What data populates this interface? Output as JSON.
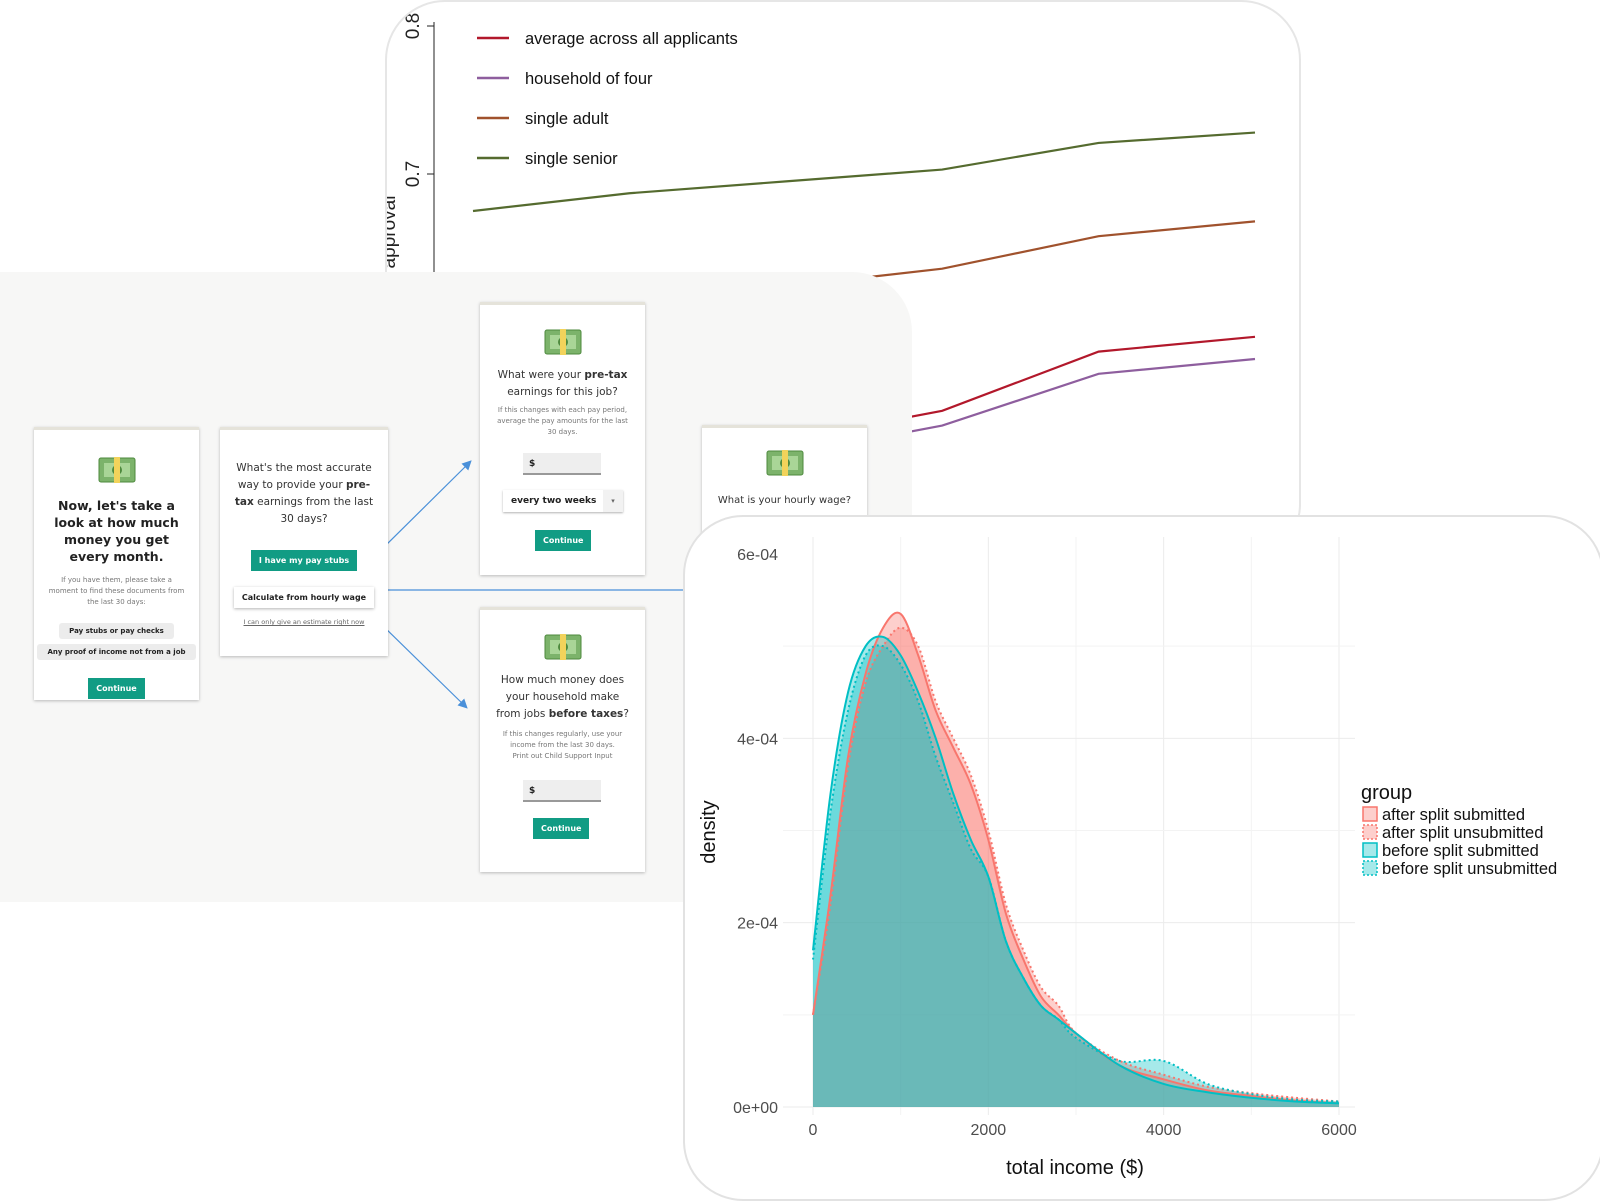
{
  "chart_data": [
    {
      "type": "line",
      "title": "",
      "xlabel": "",
      "ylabel": "approval",
      "ylim": [
        0.6,
        0.8
      ],
      "y_ticks": [
        "0.7"
      ],
      "y_top_tick_partial": "0.8",
      "x": [
        1,
        2,
        3,
        4,
        5,
        6
      ],
      "legend_position": "top-left",
      "series": [
        {
          "name": "average across all applicants",
          "color": "#b2182b",
          "values": [
            0.46,
            0.49,
            0.52,
            0.54,
            0.58,
            0.59
          ]
        },
        {
          "name": "household of four",
          "color": "#8e5e9e",
          "values": [
            0.45,
            0.48,
            0.51,
            0.53,
            0.565,
            0.575
          ]
        },
        {
          "name": "single adult",
          "color": "#a0522d",
          "values": [
            0.598,
            0.611,
            0.624,
            0.636,
            0.658,
            0.668
          ]
        },
        {
          "name": "single senior",
          "color": "#556b2f",
          "values": [
            0.675,
            0.687,
            0.695,
            0.703,
            0.721,
            0.728
          ]
        }
      ]
    },
    {
      "type": "area",
      "title": "",
      "xlabel": "total income ($)",
      "ylabel": "density",
      "xlim": [
        0,
        6000
      ],
      "ylim": [
        0,
        0.0006
      ],
      "x_ticks": [
        "0",
        "2000",
        "4000",
        "6000"
      ],
      "y_ticks": [
        "0e+00",
        "2e-04",
        "4e-04",
        "6e-04"
      ],
      "legend_title": "group",
      "legend_position": "right",
      "x": [
        0,
        200,
        400,
        600,
        800,
        1000,
        1200,
        1400,
        1600,
        1800,
        2000,
        2200,
        2400,
        2600,
        2800,
        3000,
        3500,
        4000,
        4500,
        5000,
        5500,
        6000
      ],
      "series": [
        {
          "name": "after split submitted",
          "color": "#f8766d",
          "line": "solid",
          "values": [
            0.0001,
            0.00023,
            0.00038,
            0.00047,
            0.00052,
            0.000535,
            0.00049,
            0.00043,
            0.00039,
            0.00035,
            0.00029,
            0.00021,
            0.00016,
            0.00012,
            0.0001,
            8e-05,
            4.5e-05,
            3e-05,
            1.8e-05,
            1.2e-05,
            7e-06,
            4e-06
          ]
        },
        {
          "name": "after split unsubmitted",
          "color": "#f8766d",
          "line": "dotted",
          "values": [
            0.0001,
            0.00022,
            0.00037,
            0.00046,
            0.0005,
            0.00052,
            0.0005,
            0.00044,
            0.0004,
            0.00036,
            0.0003,
            0.00022,
            0.00017,
            0.00013,
            0.00011,
            8e-05,
            5e-05,
            3.5e-05,
            2.2e-05,
            1.5e-05,
            1e-05,
            6e-06
          ]
        },
        {
          "name": "before split submitted",
          "color": "#00bfc4",
          "line": "solid",
          "values": [
            0.00017,
            0.00034,
            0.00045,
            0.0005,
            0.00051,
            0.00049,
            0.00045,
            0.0004,
            0.00034,
            0.00029,
            0.00025,
            0.00018,
            0.00014,
            0.00011,
            9.5e-05,
            8e-05,
            4.5e-05,
            2.5e-05,
            1.6e-05,
            1e-05,
            6e-06,
            4e-06
          ]
        },
        {
          "name": "before split unsubmitted",
          "color": "#00bfc4",
          "line": "dotted",
          "values": [
            0.00016,
            0.00032,
            0.00043,
            0.00049,
            0.0005,
            0.00048,
            0.00044,
            0.00038,
            0.00033,
            0.00028,
            0.00025,
            0.00018,
            0.00014,
            0.00011,
            9.5e-05,
            7.5e-05,
            5e-05,
            5e-05,
            2.5e-05,
            1.4e-05,
            8e-06,
            6e-06
          ]
        }
      ]
    }
  ],
  "flow": {
    "card1": {
      "heading": "Now, let's take a look at how much money you get every month.",
      "text": "If you have them, please take a moment to find these documents from the last 30 days:",
      "chip1": "Pay stubs or pay checks",
      "chip2": "Any proof of income not from a job",
      "button": "Continue"
    },
    "card2": {
      "q_a": "What's the most accurate way to provide your ",
      "q_b": "pre-tax",
      "q_c": " earnings from the last 30 days?",
      "btn1": "I have my pay stubs",
      "btn2": "Calculate from hourly wage",
      "link": "I can only give an estimate right now"
    },
    "card3": {
      "q_a": "What were your ",
      "q_b": "pre-tax",
      "q_c": " earnings for this job?",
      "help": "If this changes with each pay period, average the pay amounts for the last 30 days.",
      "dollar": "$",
      "select": "every two weeks",
      "button": "Continue"
    },
    "card4": {
      "q": "What is your hourly wage?"
    },
    "card5": {
      "q_a": "How much money does your household make from jobs ",
      "q_b": "before taxes",
      "q_c": "?",
      "help1": "If this changes regularly, use your income from the last 30 days.",
      "help2": "Print out Child Support Input",
      "dollar": "$",
      "button": "Continue"
    }
  }
}
